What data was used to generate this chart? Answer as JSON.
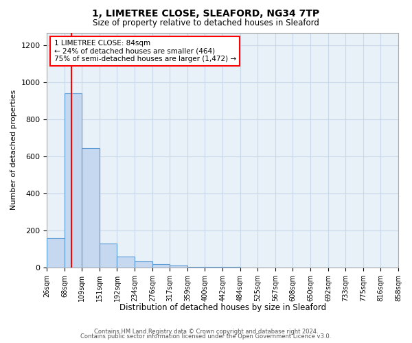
{
  "title1": "1, LIMETREE CLOSE, SLEAFORD, NG34 7TP",
  "title2": "Size of property relative to detached houses in Sleaford",
  "xlabel": "Distribution of detached houses by size in Sleaford",
  "ylabel": "Number of detached properties",
  "footer1": "Contains HM Land Registry data © Crown copyright and database right 2024.",
  "footer2": "Contains public sector information licensed under the Open Government Licence v3.0.",
  "bin_edges": [
    26,
    68,
    109,
    151,
    192,
    234,
    276,
    317,
    359,
    400,
    442,
    484,
    525,
    567,
    608,
    650,
    692,
    733,
    775,
    816,
    858
  ],
  "bar_heights": [
    160,
    940,
    645,
    130,
    60,
    33,
    18,
    10,
    5,
    3,
    2,
    1,
    1,
    1,
    1,
    0,
    0,
    0,
    0,
    0
  ],
  "bar_color": "#c5d8f0",
  "bar_edge_color": "#5b9bd5",
  "red_line_x": 84,
  "annotation_text": "1 LIMETREE CLOSE: 84sqm\n← 24% of detached houses are smaller (464)\n75% of semi-detached houses are larger (1,472) →",
  "ylim": [
    0,
    1270
  ],
  "yticks": [
    0,
    200,
    400,
    600,
    800,
    1000,
    1200
  ],
  "background_color": "#ffffff",
  "grid_color": "#c8d8e8"
}
